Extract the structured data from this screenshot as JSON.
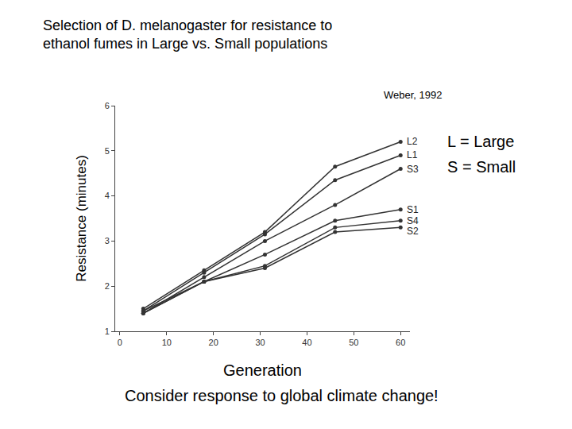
{
  "chart_data": {
    "type": "line",
    "title": [
      "Selection of D. melanogaster for resistance to",
      "ethanol fumes in Large vs. Small populations"
    ],
    "source": "Weber, 1992",
    "xlabel": "Generation",
    "ylabel": "Resistance (minutes)",
    "annotations": [
      "L = Large",
      "S = Small",
      "Consider response to global climate change!"
    ],
    "x": [
      5,
      18,
      31,
      46,
      60
    ],
    "series": [
      {
        "name": "L2",
        "color": "#333333",
        "values": [
          1.5,
          2.35,
          3.2,
          4.65,
          5.2
        ]
      },
      {
        "name": "L1",
        "color": "#333333",
        "values": [
          1.45,
          2.3,
          3.15,
          4.35,
          4.9
        ]
      },
      {
        "name": "S3",
        "color": "#333333",
        "values": [
          1.4,
          2.2,
          3.0,
          3.8,
          4.6
        ]
      },
      {
        "name": "S1",
        "color": "#333333",
        "values": [
          1.45,
          2.1,
          2.7,
          3.45,
          3.7
        ]
      },
      {
        "name": "S4",
        "color": "#333333",
        "values": [
          1.4,
          2.1,
          2.45,
          3.3,
          3.45
        ]
      },
      {
        "name": "S2",
        "color": "#333333",
        "values": [
          1.4,
          2.1,
          2.4,
          3.2,
          3.3
        ]
      }
    ],
    "xlim": [
      -1,
      62
    ],
    "xticks": [
      0,
      10,
      20,
      30,
      40,
      50,
      60
    ],
    "ylim": [
      1,
      6
    ],
    "yticks": [
      1,
      2,
      3,
      4,
      5,
      6
    ],
    "grid": false,
    "marker": "circle",
    "line_style": "solid"
  }
}
